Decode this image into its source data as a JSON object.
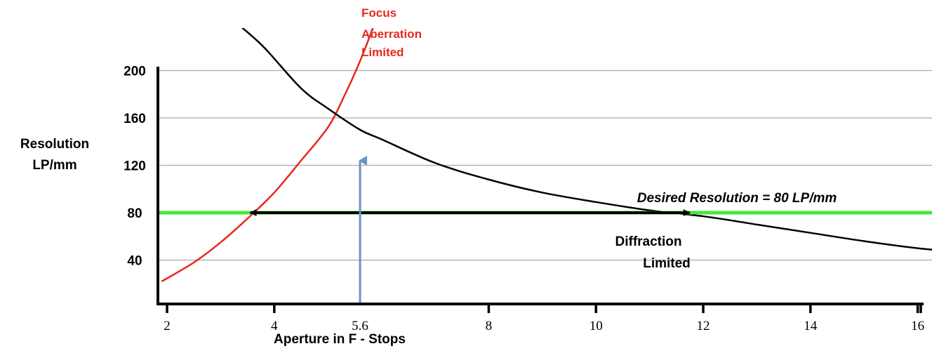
{
  "chart_data": {
    "type": "line",
    "xlabel": "Aperture in F - Stops",
    "ylabel_line1": "Resolution",
    "ylabel_line2": "LP/mm",
    "x_ticks": [
      {
        "value": 2,
        "label": "2"
      },
      {
        "value": 4,
        "label": "4"
      },
      {
        "value": 5.6,
        "label": "5.6"
      },
      {
        "value": 8,
        "label": "8"
      },
      {
        "value": 10,
        "label": "10"
      },
      {
        "value": 12,
        "label": "12"
      },
      {
        "value": 14,
        "label": "14"
      },
      {
        "value": 16,
        "label": "16"
      }
    ],
    "y_ticks": [
      40,
      80,
      120,
      160,
      200
    ],
    "xlim": [
      1.9,
      18
    ],
    "ylim": [
      0,
      205
    ],
    "grid": "horizontal",
    "series": [
      {
        "id": "focus",
        "label_lines": [
          "Focus",
          "Aberration",
          "Limited"
        ],
        "color": "#e8281e",
        "points": [
          [
            1.9,
            22
          ],
          [
            2.5,
            38
          ],
          [
            3,
            55
          ],
          [
            3.5,
            75
          ],
          [
            4,
            97
          ],
          [
            4.5,
            124
          ],
          [
            5,
            152
          ],
          [
            5.3,
            178
          ],
          [
            5.6,
            208
          ],
          [
            5.9,
            243
          ]
        ]
      },
      {
        "id": "diffraction",
        "label_lines": [
          "Diffraction",
          "Limited"
        ],
        "color": "#000000",
        "points": [
          [
            3.3,
            240
          ],
          [
            3.8,
            220
          ],
          [
            4.5,
            185
          ],
          [
            5,
            168
          ],
          [
            5.6,
            150
          ],
          [
            6,
            142
          ],
          [
            7,
            122
          ],
          [
            8,
            108
          ],
          [
            9,
            97
          ],
          [
            10,
            89
          ],
          [
            11,
            82
          ],
          [
            12,
            77
          ],
          [
            13,
            70
          ],
          [
            14,
            63
          ],
          [
            15,
            56
          ],
          [
            16,
            50
          ],
          [
            17,
            46
          ],
          [
            18,
            43
          ]
        ]
      }
    ],
    "desired": {
      "value": 80,
      "label": "Desired Resolution = 80 LP/mm",
      "color": "#44e83a",
      "range_x": [
        3.5,
        11.8
      ]
    },
    "marker": {
      "x": 5.6,
      "y_top": 150,
      "color": "#6a93c4"
    }
  }
}
